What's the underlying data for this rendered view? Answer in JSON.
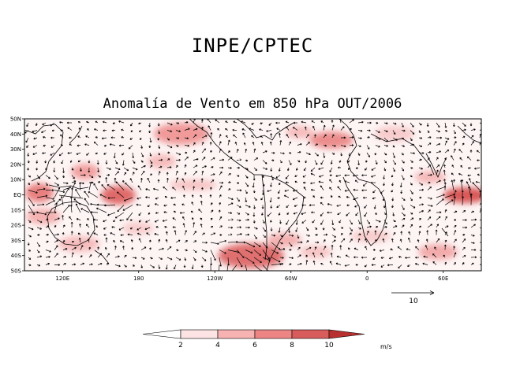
{
  "header": {
    "org": "INPE/CPTEC",
    "title": "Anomalía de Vento em 850 hPa OUT/2006"
  },
  "map": {
    "lat_ticks": [
      "50N",
      "40N",
      "30N",
      "20N",
      "10N",
      "EQ",
      "10S",
      "20S",
      "30S",
      "40S",
      "50S"
    ],
    "lon_ticks": [
      "120E",
      "180",
      "120W",
      "60W",
      "0",
      "60E"
    ],
    "lat_range": [
      -50,
      50
    ],
    "lon_range": [
      90,
      450
    ],
    "reference_vector": {
      "label": "10",
      "magnitude": 10
    }
  },
  "legend": {
    "labels": [
      "2",
      "4",
      "6",
      "8",
      "10"
    ],
    "unit": "m/s",
    "colors": [
      "#ffffff",
      "#fde3e3",
      "#f7b2b2",
      "#ee8585",
      "#d95c5c",
      "#b83030"
    ]
  }
}
